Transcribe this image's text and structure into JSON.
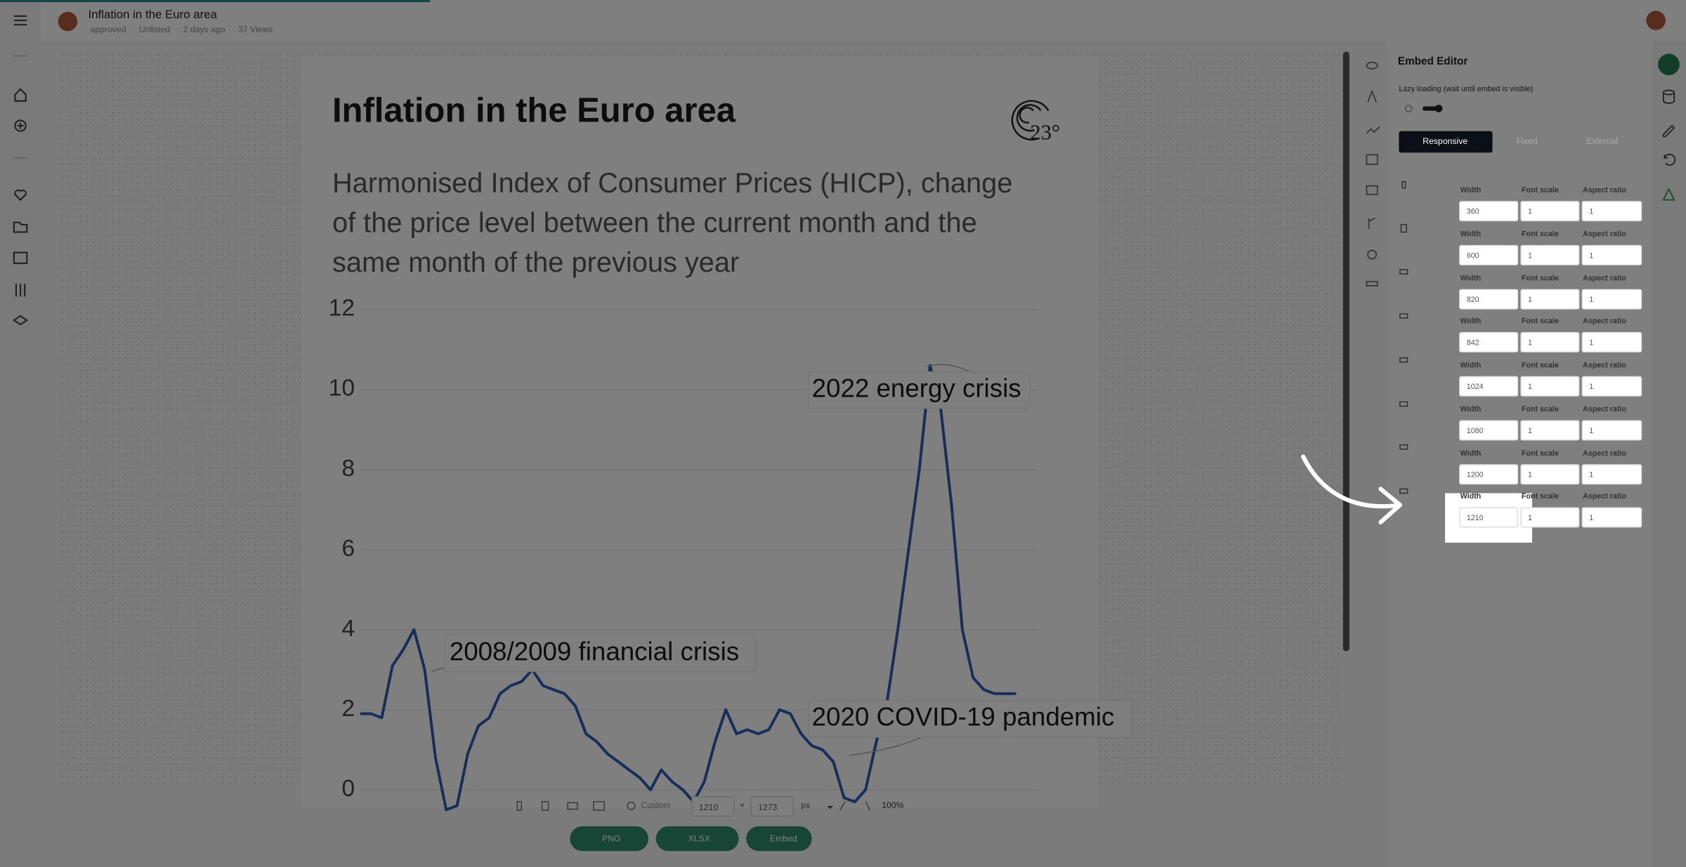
{
  "header": {
    "title": "Inflation in the Euro area",
    "meta": [
      "approved",
      "Unlisted",
      "2 days ago",
      "37 Views"
    ]
  },
  "chart": {
    "type": "line",
    "title": "Inflation in the Euro area",
    "subtitle": [
      "Harmonised Index of Consumer Prices (HICP), change",
      "of the price level between the current month and the",
      "same month of the previous year"
    ],
    "logo": "23°",
    "ylim": [
      0,
      12
    ],
    "yticks": [
      0,
      2,
      4,
      6,
      8,
      10,
      12
    ],
    "grid": true,
    "color": "#2f5bb7",
    "values": [
      1.9,
      1.9,
      1.8,
      3.1,
      3.5,
      4.0,
      3.0,
      0.8,
      -0.5,
      -0.4,
      0.9,
      1.6,
      1.8,
      2.4,
      2.6,
      2.7,
      3.0,
      2.6,
      2.5,
      2.4,
      2.1,
      1.4,
      1.2,
      0.9,
      0.7,
      0.5,
      0.3,
      0.0,
      0.5,
      0.2,
      0.0,
      -0.3,
      0.2,
      1.2,
      2.0,
      1.4,
      1.5,
      1.4,
      1.5,
      2.0,
      1.9,
      1.4,
      1.1,
      1.0,
      0.7,
      -0.2,
      -0.3,
      0.0,
      1.2,
      2.2,
      4.0,
      6.0,
      8.0,
      10.6,
      9.5,
      7.1,
      4.0,
      2.8,
      2.5,
      2.4,
      2.4,
      2.4
    ],
    "annotations": [
      "2022 energy crisis",
      "2008/2009 financial crisis",
      "2020 COVID-19 pandemic"
    ]
  },
  "embed_editor": {
    "title": "Embed Editor",
    "lazy_label": "Lazy loading (wait until embed is visible)",
    "tabs": [
      "Responsive",
      "Fixed",
      "External"
    ],
    "column_headers": [
      "Width",
      "Font scale",
      "Aspect ratio"
    ],
    "rows": [
      {
        "width": "360",
        "font_scale": "1",
        "aspect_ratio": "1"
      },
      {
        "width": "600",
        "font_scale": "1",
        "aspect_ratio": "1"
      },
      {
        "width": "820",
        "font_scale": "1",
        "aspect_ratio": "1"
      },
      {
        "width": "842",
        "font_scale": "1",
        "aspect_ratio": "1"
      },
      {
        "width": "1024",
        "font_scale": "1",
        "aspect_ratio": "1"
      },
      {
        "width": "1080",
        "font_scale": "1",
        "aspect_ratio": "1"
      },
      {
        "width": "1200",
        "font_scale": "1",
        "aspect_ratio": "1"
      },
      {
        "width": "1210",
        "font_scale": "1",
        "aspect_ratio": "1"
      }
    ]
  },
  "toolbar": {
    "preset": "Custom",
    "width": "1210",
    "times": "×",
    "height": "1273",
    "unit": "px",
    "zoom": "100%"
  },
  "buttons": [
    "PNG",
    "XLSX",
    "Embed"
  ]
}
